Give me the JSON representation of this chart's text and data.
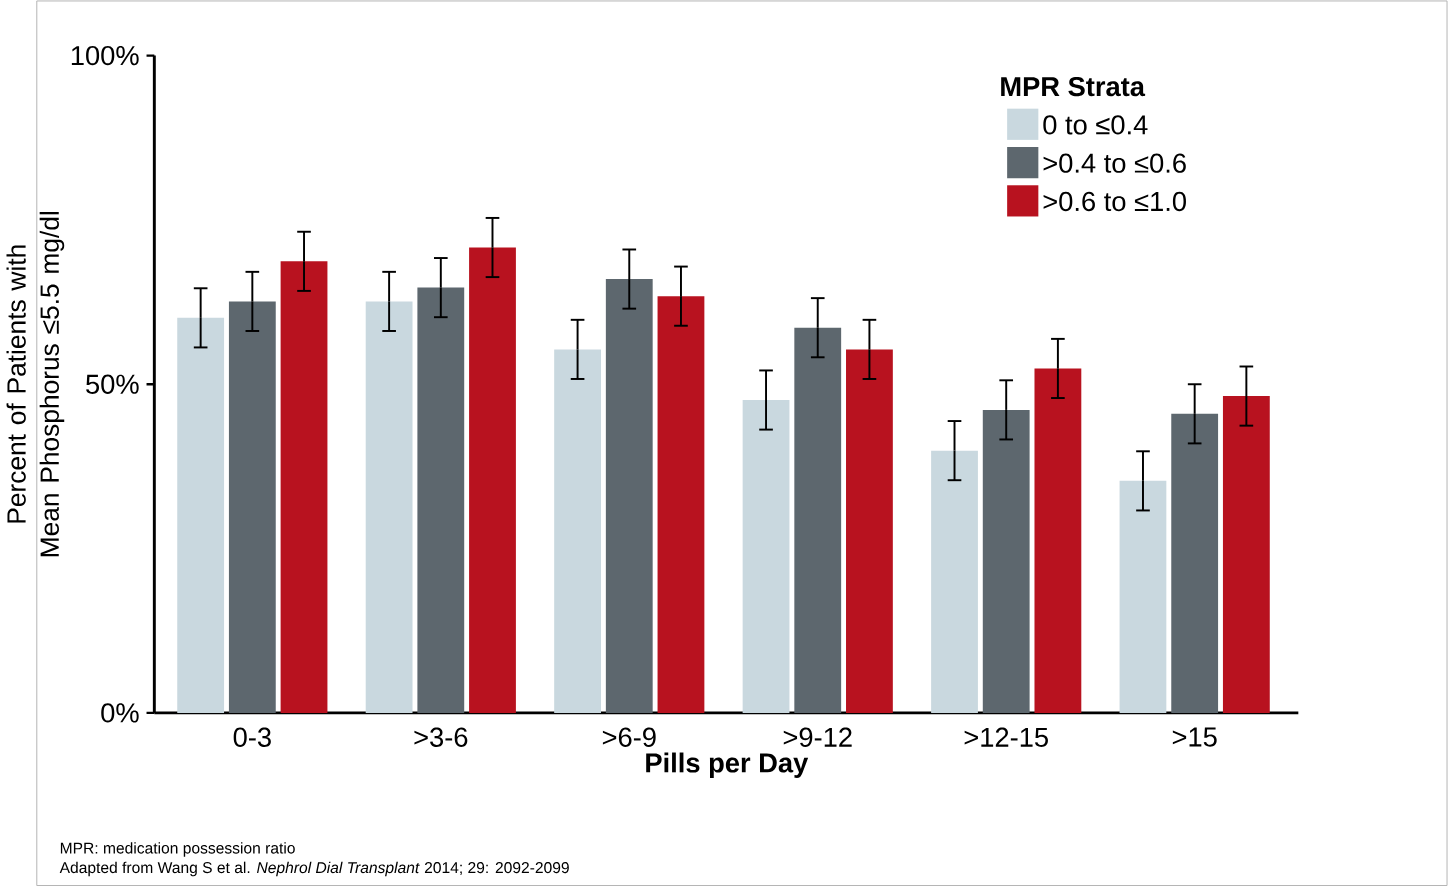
{
  "chart_data": {
    "type": "bar",
    "categories": [
      "0-3",
      ">3-6",
      ">6-9",
      ">9-12",
      ">12-15",
      ">15"
    ],
    "series": [
      {
        "name": "0 to ≤0.4",
        "color": "#c9d8df",
        "values": [
          60.1,
          62.6,
          55.3,
          47.6,
          39.9,
          35.3
        ],
        "errors": [
          4.5,
          4.5,
          4.5,
          4.5,
          4.5,
          4.5
        ]
      },
      {
        "name": ">0.4 to ≤0.6",
        "color": "#5d676e",
        "values": [
          62.6,
          64.7,
          66.0,
          58.6,
          46.1,
          45.5
        ],
        "errors": [
          4.5,
          4.5,
          4.5,
          4.5,
          4.5,
          4.5
        ]
      },
      {
        "name": ">0.6 to ≤1.0",
        "color": "#b8121f",
        "values": [
          68.7,
          70.8,
          63.4,
          55.3,
          52.4,
          48.2
        ],
        "errors": [
          4.5,
          4.5,
          4.5,
          4.5,
          4.5,
          4.5
        ]
      }
    ],
    "xlabel": "Pills per Day",
    "ylabel": "Percent of Patients with Mean Phosphorus ≤5.5 mg/dl",
    "legend_title": "MPR Strata",
    "legend": "top right",
    "ylim": [
      0,
      100
    ],
    "yticks": [
      {
        "value": 0,
        "label": "0%"
      },
      {
        "value": 50,
        "label": "50%"
      },
      {
        "value": 100,
        "label": "100%"
      }
    ],
    "grid": false,
    "annotations": [
      "MPR: medication possession ratio",
      "Adapted from Wang S et al. *Nephrol Dial Transplant* 2014; 29: 2092-2099"
    ]
  }
}
